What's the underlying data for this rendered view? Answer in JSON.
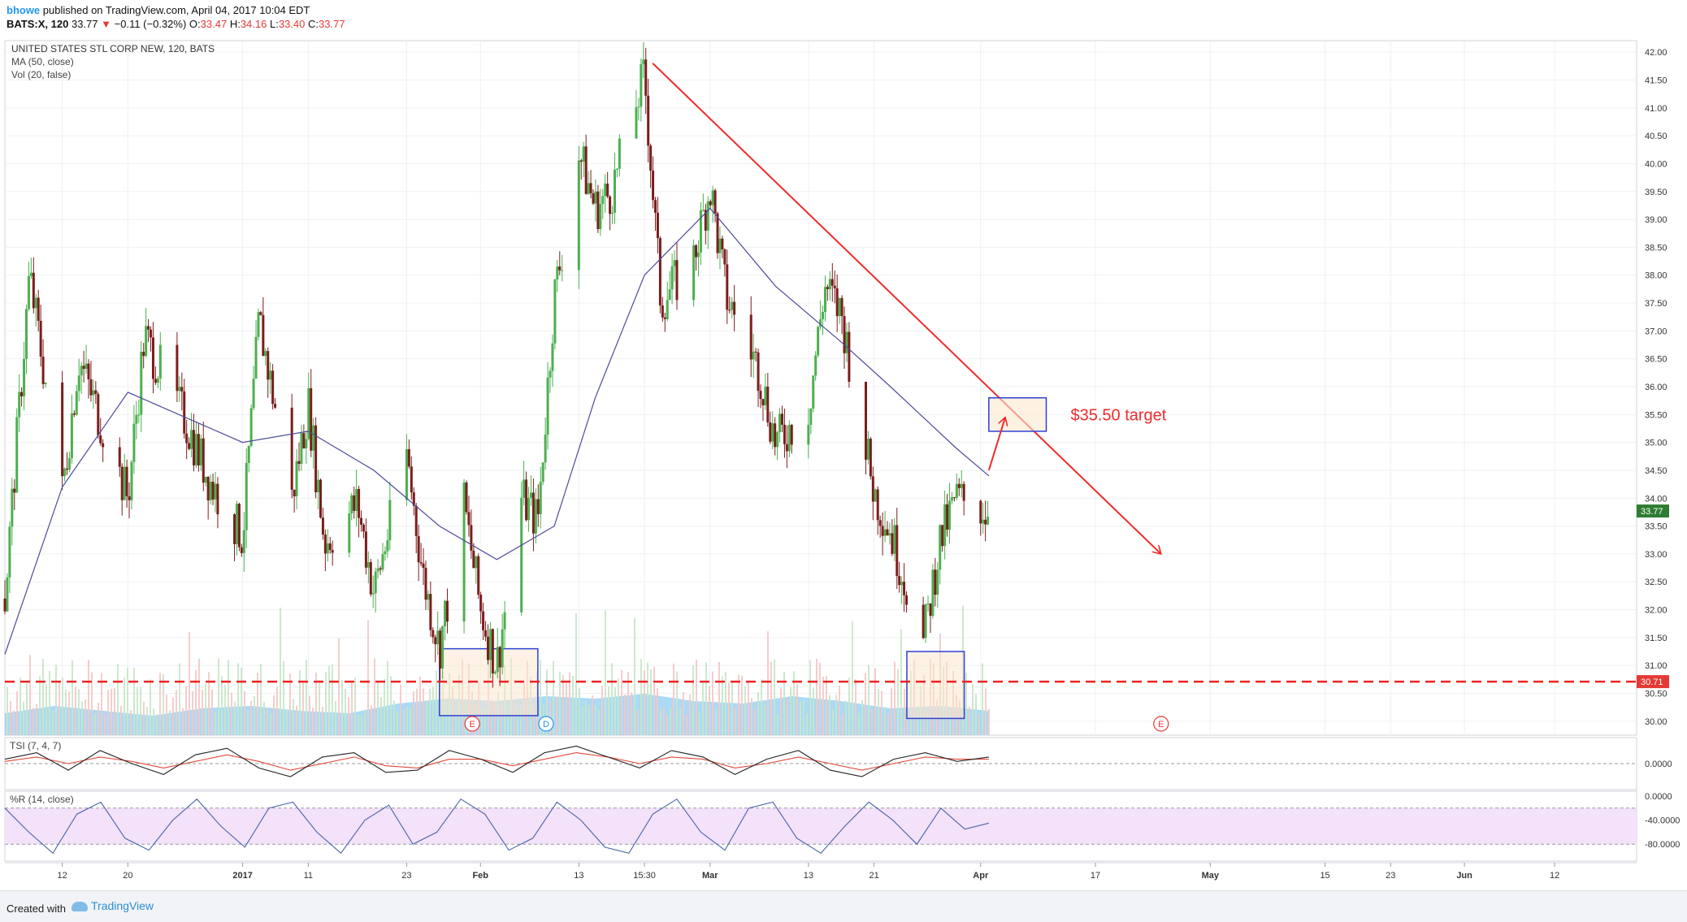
{
  "header": {
    "username": "bhowe",
    "published_text": "published on TradingView.com, April 04, 2017 10:04 EDT",
    "symbol_interval": "BATS:X, 120",
    "last_price": "33.77",
    "change_arrow": "▼",
    "change": "−0.11 (−0.32%)",
    "o_label": "O:",
    "o_value": "33.47",
    "h_label": "H:",
    "h_value": "34.16",
    "l_label": "L:",
    "l_value": "33.40",
    "c_label": "C:",
    "c_value": "33.77"
  },
  "legend": {
    "title": "UNITED STATES STL CORP NEW, 120, BATS",
    "ma": "MA (50, close)",
    "vol": "Vol (20, false)"
  },
  "footer": {
    "created_with": "Created with",
    "brand": "TradingView"
  },
  "colors": {
    "up": "#4caf50",
    "down": "#7b1d1d",
    "ma_line": "#4c4c9c",
    "trendline": "#f02a2a",
    "support_line": "#ee2222",
    "volume_area": "#8ecdf3",
    "box_fill": "#fbe8cf",
    "box_border": "#2f3fcf",
    "tsi_main": "#222222",
    "tsi_signal": "#e04a3a",
    "wr_line": "#4863a8",
    "wr_band": "#f3e2fa",
    "price_badge": "#2e7d32",
    "support_badge": "#e53935"
  },
  "chart_data": {
    "type": "candlestick",
    "title": "UNITED STATES STL CORP NEW, 120, BATS",
    "ylim": [
      29.75,
      42.25
    ],
    "y_ticks": [
      "42.00",
      "41.50",
      "41.00",
      "40.50",
      "40.00",
      "39.50",
      "39.00",
      "38.50",
      "38.00",
      "37.50",
      "37.00",
      "36.50",
      "36.00",
      "35.50",
      "35.00",
      "34.50",
      "34.00",
      "33.50",
      "33.00",
      "32.50",
      "32.00",
      "31.50",
      "31.00",
      "30.50",
      "30.00"
    ],
    "x_labels": [
      {
        "label": "12",
        "date": "2016-12-12"
      },
      {
        "label": "20",
        "date": "2016-12-20"
      },
      {
        "label": "2017",
        "date": "2017-01-03"
      },
      {
        "label": "11",
        "date": "2017-01-11"
      },
      {
        "label": "23",
        "date": "2017-01-23"
      },
      {
        "label": "Feb",
        "date": "2017-02-01"
      },
      {
        "label": "13",
        "date": "2017-02-13"
      },
      {
        "label": "15:30",
        "date": "2017-02-21"
      },
      {
        "label": "Mar",
        "date": "2017-03-01"
      },
      {
        "label": "13",
        "date": "2017-03-13"
      },
      {
        "label": "21",
        "date": "2017-03-21"
      },
      {
        "label": "Apr",
        "date": "2017-04-03"
      },
      {
        "label": "17",
        "date": "2017-04-17"
      },
      {
        "label": "May",
        "date": "2017-05-01"
      },
      {
        "label": "15",
        "date": "2017-05-15"
      },
      {
        "label": "23",
        "date": "2017-05-23"
      },
      {
        "label": "Jun",
        "date": "2017-06-01"
      },
      {
        "label": "12",
        "date": "2017-06-12"
      }
    ],
    "price_path": [
      {
        "date": "2016-12-05",
        "close": 32.2
      },
      {
        "date": "2016-12-08",
        "close": 38.0
      },
      {
        "date": "2016-12-12",
        "close": 34.1
      },
      {
        "date": "2016-12-14",
        "close": 36.5
      },
      {
        "date": "2016-12-20",
        "close": 34.0
      },
      {
        "date": "2016-12-22",
        "close": 36.9
      },
      {
        "date": "2016-12-27",
        "close": 35.4
      },
      {
        "date": "2016-12-30",
        "close": 34.3
      },
      {
        "date": "2017-01-03",
        "close": 33.3
      },
      {
        "date": "2017-01-05",
        "close": 37.2
      },
      {
        "date": "2017-01-09",
        "close": 34.0
      },
      {
        "date": "2017-01-11",
        "close": 35.7
      },
      {
        "date": "2017-01-13",
        "close": 33.2
      },
      {
        "date": "2017-01-17",
        "close": 33.9
      },
      {
        "date": "2017-01-19",
        "close": 32.3
      },
      {
        "date": "2017-01-23",
        "close": 34.8
      },
      {
        "date": "2017-01-25",
        "close": 32.6
      },
      {
        "date": "2017-01-27",
        "close": 31.3
      },
      {
        "date": "2017-01-30",
        "close": 33.9
      },
      {
        "date": "2017-02-01",
        "close": 32.0
      },
      {
        "date": "2017-02-03",
        "close": 31.0
      },
      {
        "date": "2017-02-06",
        "close": 34.0
      },
      {
        "date": "2017-02-08",
        "close": 33.6
      },
      {
        "date": "2017-02-10",
        "close": 37.6
      },
      {
        "date": "2017-02-13",
        "close": 40.2
      },
      {
        "date": "2017-02-15",
        "close": 39.2
      },
      {
        "date": "2017-02-17",
        "close": 39.5
      },
      {
        "date": "2017-02-21",
        "close": 41.6
      },
      {
        "date": "2017-02-23",
        "close": 37.5
      },
      {
        "date": "2017-02-27",
        "close": 38.3
      },
      {
        "date": "2017-03-01",
        "close": 39.6
      },
      {
        "date": "2017-03-03",
        "close": 37.6
      },
      {
        "date": "2017-03-07",
        "close": 36.3
      },
      {
        "date": "2017-03-09",
        "close": 35.0
      },
      {
        "date": "2017-03-13",
        "close": 35.6
      },
      {
        "date": "2017-03-15",
        "close": 37.8
      },
      {
        "date": "2017-03-17",
        "close": 37.3
      },
      {
        "date": "2017-03-21",
        "close": 34.1
      },
      {
        "date": "2017-03-23",
        "close": 33.4
      },
      {
        "date": "2017-03-27",
        "close": 31.4
      },
      {
        "date": "2017-03-29",
        "close": 33.2
      },
      {
        "date": "2017-03-31",
        "close": 34.0
      },
      {
        "date": "2017-04-04",
        "close": 33.77
      }
    ],
    "ma_50_path": [
      {
        "date": "2016-12-05",
        "value": 31.2
      },
      {
        "date": "2016-12-12",
        "value": 34.2
      },
      {
        "date": "2016-12-20",
        "value": 35.9
      },
      {
        "date": "2017-01-03",
        "value": 35.0
      },
      {
        "date": "2017-01-11",
        "value": 35.2
      },
      {
        "date": "2017-01-19",
        "value": 34.5
      },
      {
        "date": "2017-01-27",
        "value": 33.5
      },
      {
        "date": "2017-02-03",
        "value": 32.9
      },
      {
        "date": "2017-02-10",
        "value": 33.5
      },
      {
        "date": "2017-02-15",
        "value": 35.8
      },
      {
        "date": "2017-02-21",
        "value": 38.0
      },
      {
        "date": "2017-03-01",
        "value": 39.2
      },
      {
        "date": "2017-03-09",
        "value": 37.8
      },
      {
        "date": "2017-03-17",
        "value": 36.8
      },
      {
        "date": "2017-03-23",
        "value": 36.0
      },
      {
        "date": "2017-03-31",
        "value": 34.9
      },
      {
        "date": "2017-04-04",
        "value": 34.4
      }
    ],
    "last_price": 33.77,
    "support_level": 30.71,
    "trendline": [
      {
        "date": "2017-02-22",
        "price": 41.8
      },
      {
        "date": "2017-04-25",
        "price": 33.0
      }
    ],
    "target_box": {
      "date_start": "2017-04-04",
      "date_end": "2017-04-11",
      "price_low": 35.2,
      "price_high": 35.8
    },
    "target_arrow": [
      {
        "date": "2017-04-04",
        "price": 34.5
      },
      {
        "date": "2017-04-06",
        "price": 35.45
      }
    ],
    "annotation_text": "$35.50 target",
    "highlight_boxes": [
      {
        "date_start": "2017-01-27",
        "date_end": "2017-02-08",
        "price_low": 30.1,
        "price_high": 31.3
      },
      {
        "date_start": "2017-03-25",
        "date_end": "2017-04-01",
        "price_low": 30.05,
        "price_high": 31.25
      }
    ],
    "event_markers": [
      {
        "date": "2017-01-31",
        "letter": "E",
        "kind": "earnings"
      },
      {
        "date": "2017-02-09",
        "letter": "D",
        "kind": "dividend"
      },
      {
        "date": "2017-04-25",
        "letter": "E",
        "kind": "earnings"
      }
    ],
    "volume": {
      "label": "Vol (20, false)",
      "relative_level_path": [
        0.45,
        0.6,
        0.5,
        0.4,
        0.55,
        0.6,
        0.5,
        0.45,
        0.65,
        0.75,
        0.7,
        0.8,
        0.75,
        0.85,
        0.7,
        0.65,
        0.8,
        0.7,
        0.55,
        0.6,
        0.5
      ]
    },
    "tsi": {
      "label": "TSI (7, 4, 7)",
      "ylim": [
        -1,
        1
      ],
      "y_ticks": [
        "0.0000"
      ],
      "main_path": [
        0.2,
        0.5,
        -0.3,
        0.6,
        0.0,
        -0.5,
        0.4,
        0.7,
        -0.2,
        -0.6,
        0.3,
        0.5,
        -0.4,
        -0.3,
        0.6,
        0.2,
        -0.4,
        0.5,
        0.8,
        0.3,
        -0.2,
        0.6,
        0.3,
        -0.5,
        0.2,
        0.6,
        -0.3,
        -0.6,
        0.2,
        0.5,
        0.1,
        0.3
      ],
      "signal_path": [
        0.1,
        0.3,
        0.0,
        0.3,
        0.1,
        -0.2,
        0.1,
        0.4,
        0.1,
        -0.3,
        0.0,
        0.3,
        -0.1,
        -0.2,
        0.2,
        0.2,
        -0.1,
        0.2,
        0.5,
        0.3,
        0.0,
        0.3,
        0.2,
        -0.2,
        0.0,
        0.3,
        0.0,
        -0.3,
        0.0,
        0.3,
        0.2,
        0.2
      ]
    },
    "williams_r": {
      "label": "%R (14, close)",
      "ylim": [
        -100,
        0
      ],
      "y_ticks": [
        "0.0000",
        "-40.0000",
        "-80.0000"
      ],
      "bands": [
        -20,
        -80
      ],
      "path": [
        -20,
        -60,
        -95,
        -30,
        -10,
        -70,
        -90,
        -40,
        -5,
        -50,
        -85,
        -20,
        -10,
        -60,
        -95,
        -40,
        -15,
        -80,
        -60,
        -5,
        -30,
        -90,
        -70,
        -10,
        -40,
        -85,
        -95,
        -30,
        -5,
        -60,
        -90,
        -20,
        -10,
        -70,
        -95,
        -50,
        -10,
        -40,
        -80,
        -20,
        -55,
        -45
      ]
    }
  }
}
